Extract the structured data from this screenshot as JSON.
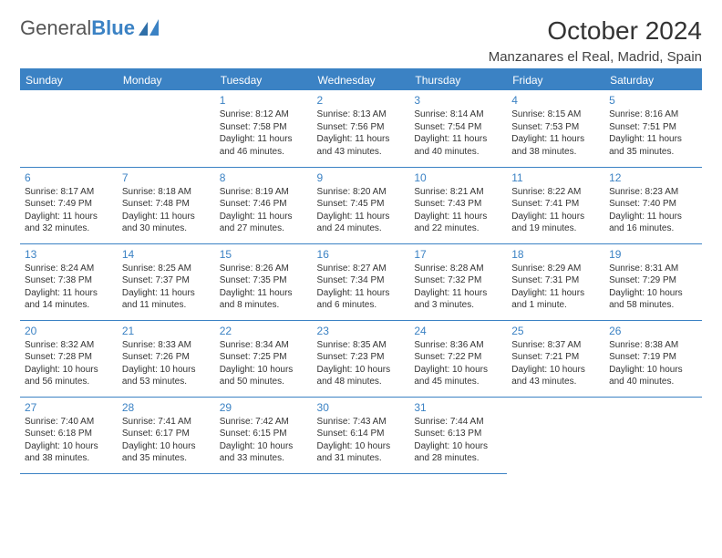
{
  "logo": {
    "text1": "General",
    "text2": "Blue"
  },
  "title": "October 2024",
  "location": "Manzanares el Real, Madrid, Spain",
  "colors": {
    "brand": "#3b82c4",
    "header_bg": "#3b82c4",
    "header_fg": "#ffffff",
    "text": "#333333"
  },
  "days_of_week": [
    "Sunday",
    "Monday",
    "Tuesday",
    "Wednesday",
    "Thursday",
    "Friday",
    "Saturday"
  ],
  "weeks": [
    [
      null,
      null,
      {
        "n": "1",
        "sunrise": "Sunrise: 8:12 AM",
        "sunset": "Sunset: 7:58 PM",
        "daylight": "Daylight: 11 hours and 46 minutes."
      },
      {
        "n": "2",
        "sunrise": "Sunrise: 8:13 AM",
        "sunset": "Sunset: 7:56 PM",
        "daylight": "Daylight: 11 hours and 43 minutes."
      },
      {
        "n": "3",
        "sunrise": "Sunrise: 8:14 AM",
        "sunset": "Sunset: 7:54 PM",
        "daylight": "Daylight: 11 hours and 40 minutes."
      },
      {
        "n": "4",
        "sunrise": "Sunrise: 8:15 AM",
        "sunset": "Sunset: 7:53 PM",
        "daylight": "Daylight: 11 hours and 38 minutes."
      },
      {
        "n": "5",
        "sunrise": "Sunrise: 8:16 AM",
        "sunset": "Sunset: 7:51 PM",
        "daylight": "Daylight: 11 hours and 35 minutes."
      }
    ],
    [
      {
        "n": "6",
        "sunrise": "Sunrise: 8:17 AM",
        "sunset": "Sunset: 7:49 PM",
        "daylight": "Daylight: 11 hours and 32 minutes."
      },
      {
        "n": "7",
        "sunrise": "Sunrise: 8:18 AM",
        "sunset": "Sunset: 7:48 PM",
        "daylight": "Daylight: 11 hours and 30 minutes."
      },
      {
        "n": "8",
        "sunrise": "Sunrise: 8:19 AM",
        "sunset": "Sunset: 7:46 PM",
        "daylight": "Daylight: 11 hours and 27 minutes."
      },
      {
        "n": "9",
        "sunrise": "Sunrise: 8:20 AM",
        "sunset": "Sunset: 7:45 PM",
        "daylight": "Daylight: 11 hours and 24 minutes."
      },
      {
        "n": "10",
        "sunrise": "Sunrise: 8:21 AM",
        "sunset": "Sunset: 7:43 PM",
        "daylight": "Daylight: 11 hours and 22 minutes."
      },
      {
        "n": "11",
        "sunrise": "Sunrise: 8:22 AM",
        "sunset": "Sunset: 7:41 PM",
        "daylight": "Daylight: 11 hours and 19 minutes."
      },
      {
        "n": "12",
        "sunrise": "Sunrise: 8:23 AM",
        "sunset": "Sunset: 7:40 PM",
        "daylight": "Daylight: 11 hours and 16 minutes."
      }
    ],
    [
      {
        "n": "13",
        "sunrise": "Sunrise: 8:24 AM",
        "sunset": "Sunset: 7:38 PM",
        "daylight": "Daylight: 11 hours and 14 minutes."
      },
      {
        "n": "14",
        "sunrise": "Sunrise: 8:25 AM",
        "sunset": "Sunset: 7:37 PM",
        "daylight": "Daylight: 11 hours and 11 minutes."
      },
      {
        "n": "15",
        "sunrise": "Sunrise: 8:26 AM",
        "sunset": "Sunset: 7:35 PM",
        "daylight": "Daylight: 11 hours and 8 minutes."
      },
      {
        "n": "16",
        "sunrise": "Sunrise: 8:27 AM",
        "sunset": "Sunset: 7:34 PM",
        "daylight": "Daylight: 11 hours and 6 minutes."
      },
      {
        "n": "17",
        "sunrise": "Sunrise: 8:28 AM",
        "sunset": "Sunset: 7:32 PM",
        "daylight": "Daylight: 11 hours and 3 minutes."
      },
      {
        "n": "18",
        "sunrise": "Sunrise: 8:29 AM",
        "sunset": "Sunset: 7:31 PM",
        "daylight": "Daylight: 11 hours and 1 minute."
      },
      {
        "n": "19",
        "sunrise": "Sunrise: 8:31 AM",
        "sunset": "Sunset: 7:29 PM",
        "daylight": "Daylight: 10 hours and 58 minutes."
      }
    ],
    [
      {
        "n": "20",
        "sunrise": "Sunrise: 8:32 AM",
        "sunset": "Sunset: 7:28 PM",
        "daylight": "Daylight: 10 hours and 56 minutes."
      },
      {
        "n": "21",
        "sunrise": "Sunrise: 8:33 AM",
        "sunset": "Sunset: 7:26 PM",
        "daylight": "Daylight: 10 hours and 53 minutes."
      },
      {
        "n": "22",
        "sunrise": "Sunrise: 8:34 AM",
        "sunset": "Sunset: 7:25 PM",
        "daylight": "Daylight: 10 hours and 50 minutes."
      },
      {
        "n": "23",
        "sunrise": "Sunrise: 8:35 AM",
        "sunset": "Sunset: 7:23 PM",
        "daylight": "Daylight: 10 hours and 48 minutes."
      },
      {
        "n": "24",
        "sunrise": "Sunrise: 8:36 AM",
        "sunset": "Sunset: 7:22 PM",
        "daylight": "Daylight: 10 hours and 45 minutes."
      },
      {
        "n": "25",
        "sunrise": "Sunrise: 8:37 AM",
        "sunset": "Sunset: 7:21 PM",
        "daylight": "Daylight: 10 hours and 43 minutes."
      },
      {
        "n": "26",
        "sunrise": "Sunrise: 8:38 AM",
        "sunset": "Sunset: 7:19 PM",
        "daylight": "Daylight: 10 hours and 40 minutes."
      }
    ],
    [
      {
        "n": "27",
        "sunrise": "Sunrise: 7:40 AM",
        "sunset": "Sunset: 6:18 PM",
        "daylight": "Daylight: 10 hours and 38 minutes."
      },
      {
        "n": "28",
        "sunrise": "Sunrise: 7:41 AM",
        "sunset": "Sunset: 6:17 PM",
        "daylight": "Daylight: 10 hours and 35 minutes."
      },
      {
        "n": "29",
        "sunrise": "Sunrise: 7:42 AM",
        "sunset": "Sunset: 6:15 PM",
        "daylight": "Daylight: 10 hours and 33 minutes."
      },
      {
        "n": "30",
        "sunrise": "Sunrise: 7:43 AM",
        "sunset": "Sunset: 6:14 PM",
        "daylight": "Daylight: 10 hours and 31 minutes."
      },
      {
        "n": "31",
        "sunrise": "Sunrise: 7:44 AM",
        "sunset": "Sunset: 6:13 PM",
        "daylight": "Daylight: 10 hours and 28 minutes."
      },
      null,
      null
    ]
  ]
}
